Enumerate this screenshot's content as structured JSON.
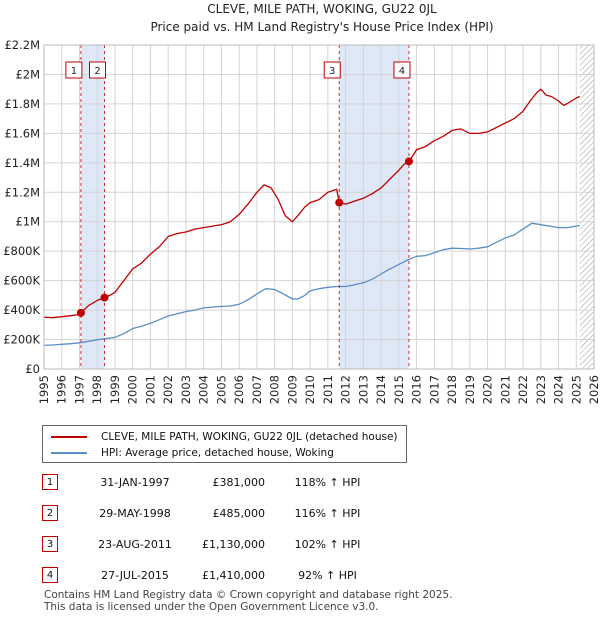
{
  "chart_data": {
    "type": "line",
    "title": "CLEVE, MILE PATH, WOKING, GU22 0JL",
    "subtitle": "Price paid vs. HM Land Registry's House Price Index (HPI)",
    "x_ticks": [
      "1995",
      "1996",
      "1997",
      "1998",
      "1999",
      "2000",
      "2001",
      "2002",
      "2003",
      "2004",
      "2005",
      "2006",
      "2007",
      "2008",
      "2009",
      "2010",
      "2011",
      "2012",
      "2013",
      "2014",
      "2015",
      "2016",
      "2017",
      "2018",
      "2019",
      "2020",
      "2021",
      "2022",
      "2023",
      "2024",
      "2025",
      "2026"
    ],
    "y_ticks": [
      "£0",
      "£200K",
      "£400K",
      "£600K",
      "£800K",
      "£1M",
      "£1.2M",
      "£1.4M",
      "£1.6M",
      "£1.8M",
      "£2M",
      "£2.2M"
    ],
    "xlim": [
      1995,
      2026
    ],
    "ylim": [
      0,
      2200000
    ],
    "grid": true,
    "series": [
      {
        "name": "CLEVE, MILE PATH, WOKING, GU22 0JL (detached house)",
        "color": "#c00000",
        "x": [
          1995.0,
          1995.5,
          1996.0,
          1996.5,
          1997.0,
          1997.08,
          1997.5,
          1998.0,
          1998.41,
          1998.7,
          1999.0,
          1999.5,
          2000.0,
          2000.5,
          2001.0,
          2001.5,
          2002.0,
          2002.5,
          2003.0,
          2003.5,
          2004.0,
          2004.5,
          2005.0,
          2005.5,
          2006.0,
          2006.5,
          2007.0,
          2007.4,
          2007.8,
          2008.2,
          2008.6,
          2009.0,
          2009.3,
          2009.7,
          2010.0,
          2010.5,
          2011.0,
          2011.5,
          2011.64,
          2012.0,
          2012.5,
          2013.0,
          2013.5,
          2014.0,
          2014.5,
          2015.0,
          2015.3,
          2015.57,
          2015.8,
          2016.0,
          2016.5,
          2017.0,
          2017.5,
          2018.0,
          2018.5,
          2019.0,
          2019.5,
          2020.0,
          2020.5,
          2021.0,
          2021.5,
          2022.0,
          2022.4,
          2022.8,
          2023.0,
          2023.3,
          2023.6,
          2024.0,
          2024.3,
          2024.6,
          2025.0,
          2025.2
        ],
        "values": [
          352000,
          348000,
          355000,
          362000,
          370000,
          381000,
          430000,
          465000,
          485000,
          500000,
          520000,
          600000,
          680000,
          720000,
          780000,
          830000,
          900000,
          920000,
          930000,
          950000,
          960000,
          970000,
          980000,
          1000000,
          1050000,
          1120000,
          1200000,
          1250000,
          1230000,
          1150000,
          1040000,
          1000000,
          1040000,
          1100000,
          1130000,
          1150000,
          1200000,
          1220000,
          1130000,
          1120000,
          1140000,
          1160000,
          1190000,
          1230000,
          1290000,
          1350000,
          1390000,
          1410000,
          1450000,
          1490000,
          1510000,
          1550000,
          1580000,
          1620000,
          1630000,
          1600000,
          1600000,
          1610000,
          1640000,
          1670000,
          1700000,
          1750000,
          1820000,
          1880000,
          1900000,
          1860000,
          1850000,
          1820000,
          1790000,
          1810000,
          1840000,
          1850000
        ]
      },
      {
        "name": "HPI: Average price, detached house, Woking",
        "color": "#5b8ec4",
        "x": [
          1995.0,
          1995.5,
          1996.0,
          1996.5,
          1997.0,
          1997.5,
          1998.0,
          1998.5,
          1999.0,
          1999.5,
          2000.0,
          2000.5,
          2001.0,
          2001.5,
          2002.0,
          2002.5,
          2003.0,
          2003.5,
          2004.0,
          2004.5,
          2005.0,
          2005.5,
          2006.0,
          2006.5,
          2007.0,
          2007.5,
          2008.0,
          2008.5,
          2009.0,
          2009.3,
          2009.7,
          2010.0,
          2010.5,
          2011.0,
          2011.5,
          2012.0,
          2012.5,
          2013.0,
          2013.5,
          2014.0,
          2014.5,
          2015.0,
          2015.5,
          2016.0,
          2016.5,
          2017.0,
          2017.5,
          2018.0,
          2018.5,
          2019.0,
          2019.5,
          2020.0,
          2020.5,
          2021.0,
          2021.5,
          2022.0,
          2022.5,
          2023.0,
          2023.5,
          2024.0,
          2024.5,
          2025.0,
          2025.2
        ],
        "values": [
          160000,
          163000,
          168000,
          172000,
          178000,
          188000,
          198000,
          207000,
          215000,
          240000,
          275000,
          290000,
          310000,
          335000,
          360000,
          375000,
          390000,
          400000,
          415000,
          420000,
          425000,
          428000,
          440000,
          470000,
          510000,
          545000,
          540000,
          510000,
          475000,
          475000,
          500000,
          530000,
          545000,
          555000,
          560000,
          560000,
          572000,
          585000,
          610000,
          645000,
          680000,
          710000,
          740000,
          765000,
          770000,
          790000,
          810000,
          820000,
          818000,
          815000,
          820000,
          830000,
          860000,
          890000,
          910000,
          950000,
          990000,
          980000,
          970000,
          960000,
          960000,
          970000,
          975000
        ]
      }
    ],
    "sales": [
      {
        "label": "1",
        "x": 1997.08,
        "value": 381000
      },
      {
        "label": "2",
        "x": 1998.41,
        "value": 485000
      },
      {
        "label": "3",
        "x": 2011.64,
        "value": 1130000
      },
      {
        "label": "4",
        "x": 2015.57,
        "value": 1410000
      }
    ],
    "sale_bands": [
      [
        1997.08,
        1998.41
      ],
      [
        2011.64,
        2015.57
      ]
    ],
    "forecast_start": 2025.2,
    "colors": {
      "property": "#c00000",
      "hpi": "#5b8ec4",
      "band": "#dfe8f7",
      "grid": "#d4d4d4",
      "plot_bg": "#ffffff"
    }
  },
  "legend": {
    "property": "CLEVE, MILE PATH, WOKING, GU22 0JL (detached house)",
    "hpi": "HPI: Average price, detached house, Woking"
  },
  "sales_table": [
    {
      "num": "1",
      "date": "31-JAN-1997",
      "price": "£381,000",
      "hpi": "118% ↑ HPI"
    },
    {
      "num": "2",
      "date": "29-MAY-1998",
      "price": "£485,000",
      "hpi": "116% ↑ HPI"
    },
    {
      "num": "3",
      "date": "23-AUG-2011",
      "price": "£1,130,000",
      "hpi": "102% ↑ HPI"
    },
    {
      "num": "4",
      "date": "27-JUL-2015",
      "price": "£1,410,000",
      "hpi": "92% ↑ HPI"
    }
  ],
  "footer": {
    "line1": "Contains HM Land Registry data © Crown copyright and database right 2025.",
    "line2": "This data is licensed under the Open Government Licence v3.0."
  }
}
